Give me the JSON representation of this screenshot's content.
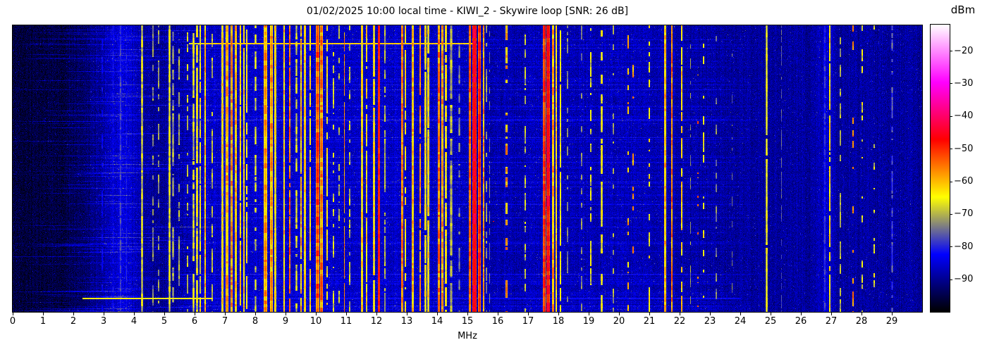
{
  "figure": {
    "title": "01/02/2025 10:00 local time - KIWI_2 - Skywire loop [SNR: 26 dB]",
    "background": "#ffffff"
  },
  "x_axis": {
    "label": "MHz",
    "tick_labels": [
      "0",
      "1",
      "2",
      "3",
      "4",
      "5",
      "6",
      "7",
      "8",
      "9",
      "10",
      "11",
      "12",
      "13",
      "14",
      "15",
      "16",
      "17",
      "18",
      "19",
      "20",
      "21",
      "22",
      "23",
      "24",
      "25",
      "26",
      "27",
      "28",
      "29"
    ],
    "range_mhz": [
      0,
      30
    ]
  },
  "y_axis": {
    "note": "time axis, no ticks or labels shown"
  },
  "colorbar": {
    "label": "dBm",
    "vmin": -100,
    "vmax": -12,
    "ticks": [
      {
        "label": "−20",
        "value": -20
      },
      {
        "label": "−30",
        "value": -30
      },
      {
        "label": "−40",
        "value": -40
      },
      {
        "label": "−50",
        "value": -50
      },
      {
        "label": "−60",
        "value": -60
      },
      {
        "label": "−70",
        "value": -70
      },
      {
        "label": "−80",
        "value": -80
      },
      {
        "label": "−90",
        "value": -90
      }
    ]
  },
  "chart_data": {
    "type": "heatmap",
    "title": "01/02/2025 10:00 local time - KIWI_2 - Skywire loop [SNR: 26 dB]",
    "xlabel": "MHz",
    "x_range_mhz": [
      0,
      30
    ],
    "x_ticks": [
      0,
      1,
      2,
      3,
      4,
      5,
      6,
      7,
      8,
      9,
      10,
      11,
      12,
      13,
      14,
      15,
      16,
      17,
      18,
      19,
      20,
      21,
      22,
      23,
      24,
      25,
      26,
      27,
      28,
      29
    ],
    "value_unit": "dBm",
    "value_range": [
      -100,
      -12
    ],
    "colorbar_ticks": [
      -20,
      -30,
      -40,
      -50,
      -60,
      -70,
      -80,
      -90
    ],
    "legend_position": "right-colorbar",
    "grid": false,
    "colormap_stops": [
      {
        "pos": 0.0,
        "color": "#000000"
      },
      {
        "pos": 0.2,
        "color": "#0000ff"
      },
      {
        "pos": 0.4,
        "color": "#ffff00"
      },
      {
        "pos": 0.6,
        "color": "#ff0000"
      },
      {
        "pos": 0.8,
        "color": "#ff00ff"
      },
      {
        "pos": 1.0,
        "color": "#ffffff"
      }
    ],
    "noise_floor_dbm": [
      [
        0,
        -96
      ],
      [
        1.6,
        -95.5
      ],
      [
        2.3,
        -93
      ],
      [
        2.8,
        -90
      ],
      [
        3.2,
        -87
      ],
      [
        3.55,
        -84.5
      ],
      [
        3.85,
        -85.5
      ],
      [
        4.3,
        -89
      ],
      [
        5.0,
        -90
      ],
      [
        5.6,
        -88.5
      ],
      [
        6.2,
        -86.5
      ],
      [
        7.0,
        -86
      ],
      [
        10.0,
        -86
      ],
      [
        12.5,
        -86.5
      ],
      [
        14.5,
        -87
      ],
      [
        15.6,
        -88
      ],
      [
        16.8,
        -88
      ],
      [
        17.4,
        -87
      ],
      [
        18.5,
        -87.5
      ],
      [
        20.0,
        -87.5
      ],
      [
        22.0,
        -88
      ],
      [
        23.0,
        -89
      ],
      [
        24.5,
        -89
      ],
      [
        26.4,
        -89
      ],
      [
        26.8,
        -85.5
      ],
      [
        27.2,
        -88.5
      ],
      [
        28.0,
        -89
      ],
      [
        30,
        -89
      ]
    ],
    "band_format": [
      "mhz",
      "width_mhz",
      "level_dbm",
      "variation_db",
      "duty"
    ],
    "signals": [
      [
        2.95,
        0.03,
        -84,
        3,
        0.6
      ],
      [
        3.3,
        0.04,
        -82,
        3,
        0.8
      ],
      [
        3.55,
        0.07,
        -79,
        3,
        1
      ],
      [
        3.75,
        0.04,
        -81,
        3,
        0.9
      ],
      [
        4.26,
        0.04,
        -66,
        4,
        1
      ],
      [
        4.62,
        0.025,
        -73,
        4,
        0.5
      ],
      [
        4.81,
        0.025,
        -72,
        4,
        0.5
      ],
      [
        5.17,
        0.04,
        -65,
        4,
        1
      ],
      [
        5.28,
        0.03,
        -70,
        4,
        0.6
      ],
      [
        5.47,
        0.025,
        -71,
        4,
        0.5
      ],
      [
        5.75,
        0.03,
        -68,
        4,
        0.5
      ],
      [
        5.95,
        0.04,
        -66,
        5,
        0.8
      ],
      [
        6.07,
        0.04,
        -64,
        5,
        0.9
      ],
      [
        6.18,
        0.035,
        -66,
        5,
        0.8
      ],
      [
        6.33,
        0.03,
        -60,
        5,
        1
      ],
      [
        6.56,
        0.025,
        -70,
        4,
        0.6
      ],
      [
        6.9,
        0.05,
        -61,
        5,
        1
      ],
      [
        7.05,
        0.07,
        -58,
        5,
        1
      ],
      [
        7.21,
        0.06,
        -55,
        5,
        1
      ],
      [
        7.35,
        0.05,
        -58,
        5,
        1
      ],
      [
        7.5,
        0.03,
        -62,
        4,
        0.9
      ],
      [
        7.62,
        0.03,
        -63,
        5,
        0.9
      ],
      [
        7.72,
        0.025,
        -65,
        4,
        0.7
      ],
      [
        8.0,
        0.03,
        -67,
        4,
        0.6
      ],
      [
        8.33,
        0.1,
        -58,
        5,
        1
      ],
      [
        8.52,
        0.08,
        -57,
        5,
        1
      ],
      [
        8.65,
        0.04,
        -62,
        5,
        1
      ],
      [
        8.95,
        0.03,
        -62,
        5,
        1
      ],
      [
        9.12,
        0.03,
        -55,
        5,
        0.9
      ],
      [
        9.35,
        0.035,
        -66,
        5,
        0.7
      ],
      [
        9.5,
        0.04,
        -61,
        5,
        0.9
      ],
      [
        9.63,
        0.03,
        -60,
        5,
        1
      ],
      [
        9.81,
        0.03,
        -62,
        5,
        0.85
      ],
      [
        10.05,
        0.08,
        -52,
        5,
        1
      ],
      [
        10.18,
        0.06,
        -55,
        5,
        1
      ],
      [
        10.35,
        0.025,
        -64,
        4,
        0.6
      ],
      [
        10.56,
        0.025,
        -67,
        4,
        0.5
      ],
      [
        10.76,
        0.02,
        -70,
        3,
        0.45
      ],
      [
        10.93,
        0.02,
        -57,
        4,
        0.9
      ],
      [
        11.1,
        0.02,
        -69,
        4,
        0.5
      ],
      [
        11.51,
        0.04,
        -60,
        5,
        1
      ],
      [
        11.67,
        0.03,
        -63,
        5,
        0.8
      ],
      [
        11.91,
        0.03,
        -61,
        5,
        0.9
      ],
      [
        12.07,
        0.05,
        -45,
        3,
        1
      ],
      [
        12.26,
        0.025,
        -70,
        3,
        0.6
      ],
      [
        12.84,
        0.035,
        -53,
        4,
        1
      ],
      [
        12.95,
        0.025,
        -64,
        4,
        0.6
      ],
      [
        13.19,
        0.035,
        -58,
        5,
        1
      ],
      [
        13.42,
        0.025,
        -57,
        4,
        0.8
      ],
      [
        13.6,
        0.035,
        -62,
        5,
        0.9
      ],
      [
        13.7,
        0.03,
        -61,
        5,
        0.9
      ],
      [
        14.05,
        0.05,
        -53,
        5,
        1
      ],
      [
        14.16,
        0.04,
        -56,
        5,
        1
      ],
      [
        14.28,
        0.03,
        -62,
        4,
        0.8
      ],
      [
        14.45,
        0.06,
        -70,
        4,
        0.8
      ],
      [
        14.72,
        0.03,
        -72,
        3,
        0.5
      ],
      [
        15.07,
        0.06,
        -51,
        4,
        1
      ],
      [
        15.22,
        0.1,
        -45,
        3,
        1
      ],
      [
        15.38,
        0.08,
        -48,
        4,
        1
      ],
      [
        15.52,
        0.04,
        -58,
        5,
        1
      ],
      [
        15.62,
        0.025,
        -72,
        3,
        0.5
      ],
      [
        15.72,
        0.02,
        -73,
        3,
        0.5
      ],
      [
        15.84,
        0.02,
        -50,
        3,
        0.22
      ],
      [
        16.28,
        0.045,
        -56,
        5,
        0.45
      ],
      [
        16.9,
        0.025,
        -70,
        4,
        0.5
      ],
      [
        17.52,
        0.07,
        -49,
        4,
        1
      ],
      [
        17.65,
        0.09,
        -46,
        4,
        1
      ],
      [
        17.82,
        0.04,
        -56,
        5,
        1
      ],
      [
        17.92,
        0.025,
        -62,
        4,
        1
      ],
      [
        18.06,
        0.02,
        -65,
        4,
        0.8
      ],
      [
        18.3,
        0.02,
        -73,
        3,
        0.5
      ],
      [
        18.75,
        0.02,
        -73,
        3,
        0.4
      ],
      [
        19.05,
        0.025,
        -67,
        4,
        0.5
      ],
      [
        19.42,
        0.03,
        -63,
        4,
        0.55
      ],
      [
        19.8,
        0.02,
        -71,
        3,
        0.4
      ],
      [
        20.3,
        0.025,
        -60,
        5,
        0.35
      ],
      [
        20.45,
        0.02,
        -58,
        5,
        0.3
      ],
      [
        20.98,
        0.025,
        -64,
        4,
        0.5
      ],
      [
        21.51,
        0.035,
        -58,
        5,
        1
      ],
      [
        21.74,
        0.03,
        -56,
        5,
        1
      ],
      [
        22.06,
        0.03,
        -62,
        4,
        0.7
      ],
      [
        22.35,
        0.02,
        -72,
        3,
        0.4
      ],
      [
        22.6,
        0.02,
        -55,
        4,
        0.25
      ],
      [
        22.78,
        0.025,
        -64,
        4,
        0.4
      ],
      [
        23.2,
        0.02,
        -74,
        3,
        0.5
      ],
      [
        23.72,
        0.02,
        -74,
        3,
        0.35
      ],
      [
        24.86,
        0.028,
        -64,
        3,
        0.95
      ],
      [
        25.35,
        0.02,
        -76,
        3,
        0.45
      ],
      [
        26.78,
        0.06,
        -80,
        3,
        1
      ],
      [
        26.95,
        0.028,
        -63,
        4,
        0.85
      ],
      [
        27.3,
        0.02,
        -70,
        3,
        0.5
      ],
      [
        27.7,
        0.02,
        -57,
        4,
        0.3
      ],
      [
        28.02,
        0.02,
        -66,
        4,
        0.35
      ],
      [
        28.4,
        0.02,
        -67,
        4,
        0.3
      ],
      [
        29.0,
        0.03,
        -75,
        3,
        0.5
      ]
    ],
    "events": [
      {
        "type": "wideband_burst",
        "time_frac": 0.062,
        "mhz_span": [
          5.8,
          15.15
        ],
        "level_dbm": -61,
        "fade_in_until_mhz": 6.3,
        "weak_level_dbm": -67
      },
      {
        "type": "wideband_burst",
        "time_frac": 0.952,
        "mhz_span": [
          2.3,
          6.6
        ],
        "level_dbm": -64
      },
      {
        "type": "wideband_burst",
        "time_frac": 0.952,
        "mhz_span": [
          6.6,
          24.0
        ],
        "level_dbm": -82
      }
    ]
  }
}
